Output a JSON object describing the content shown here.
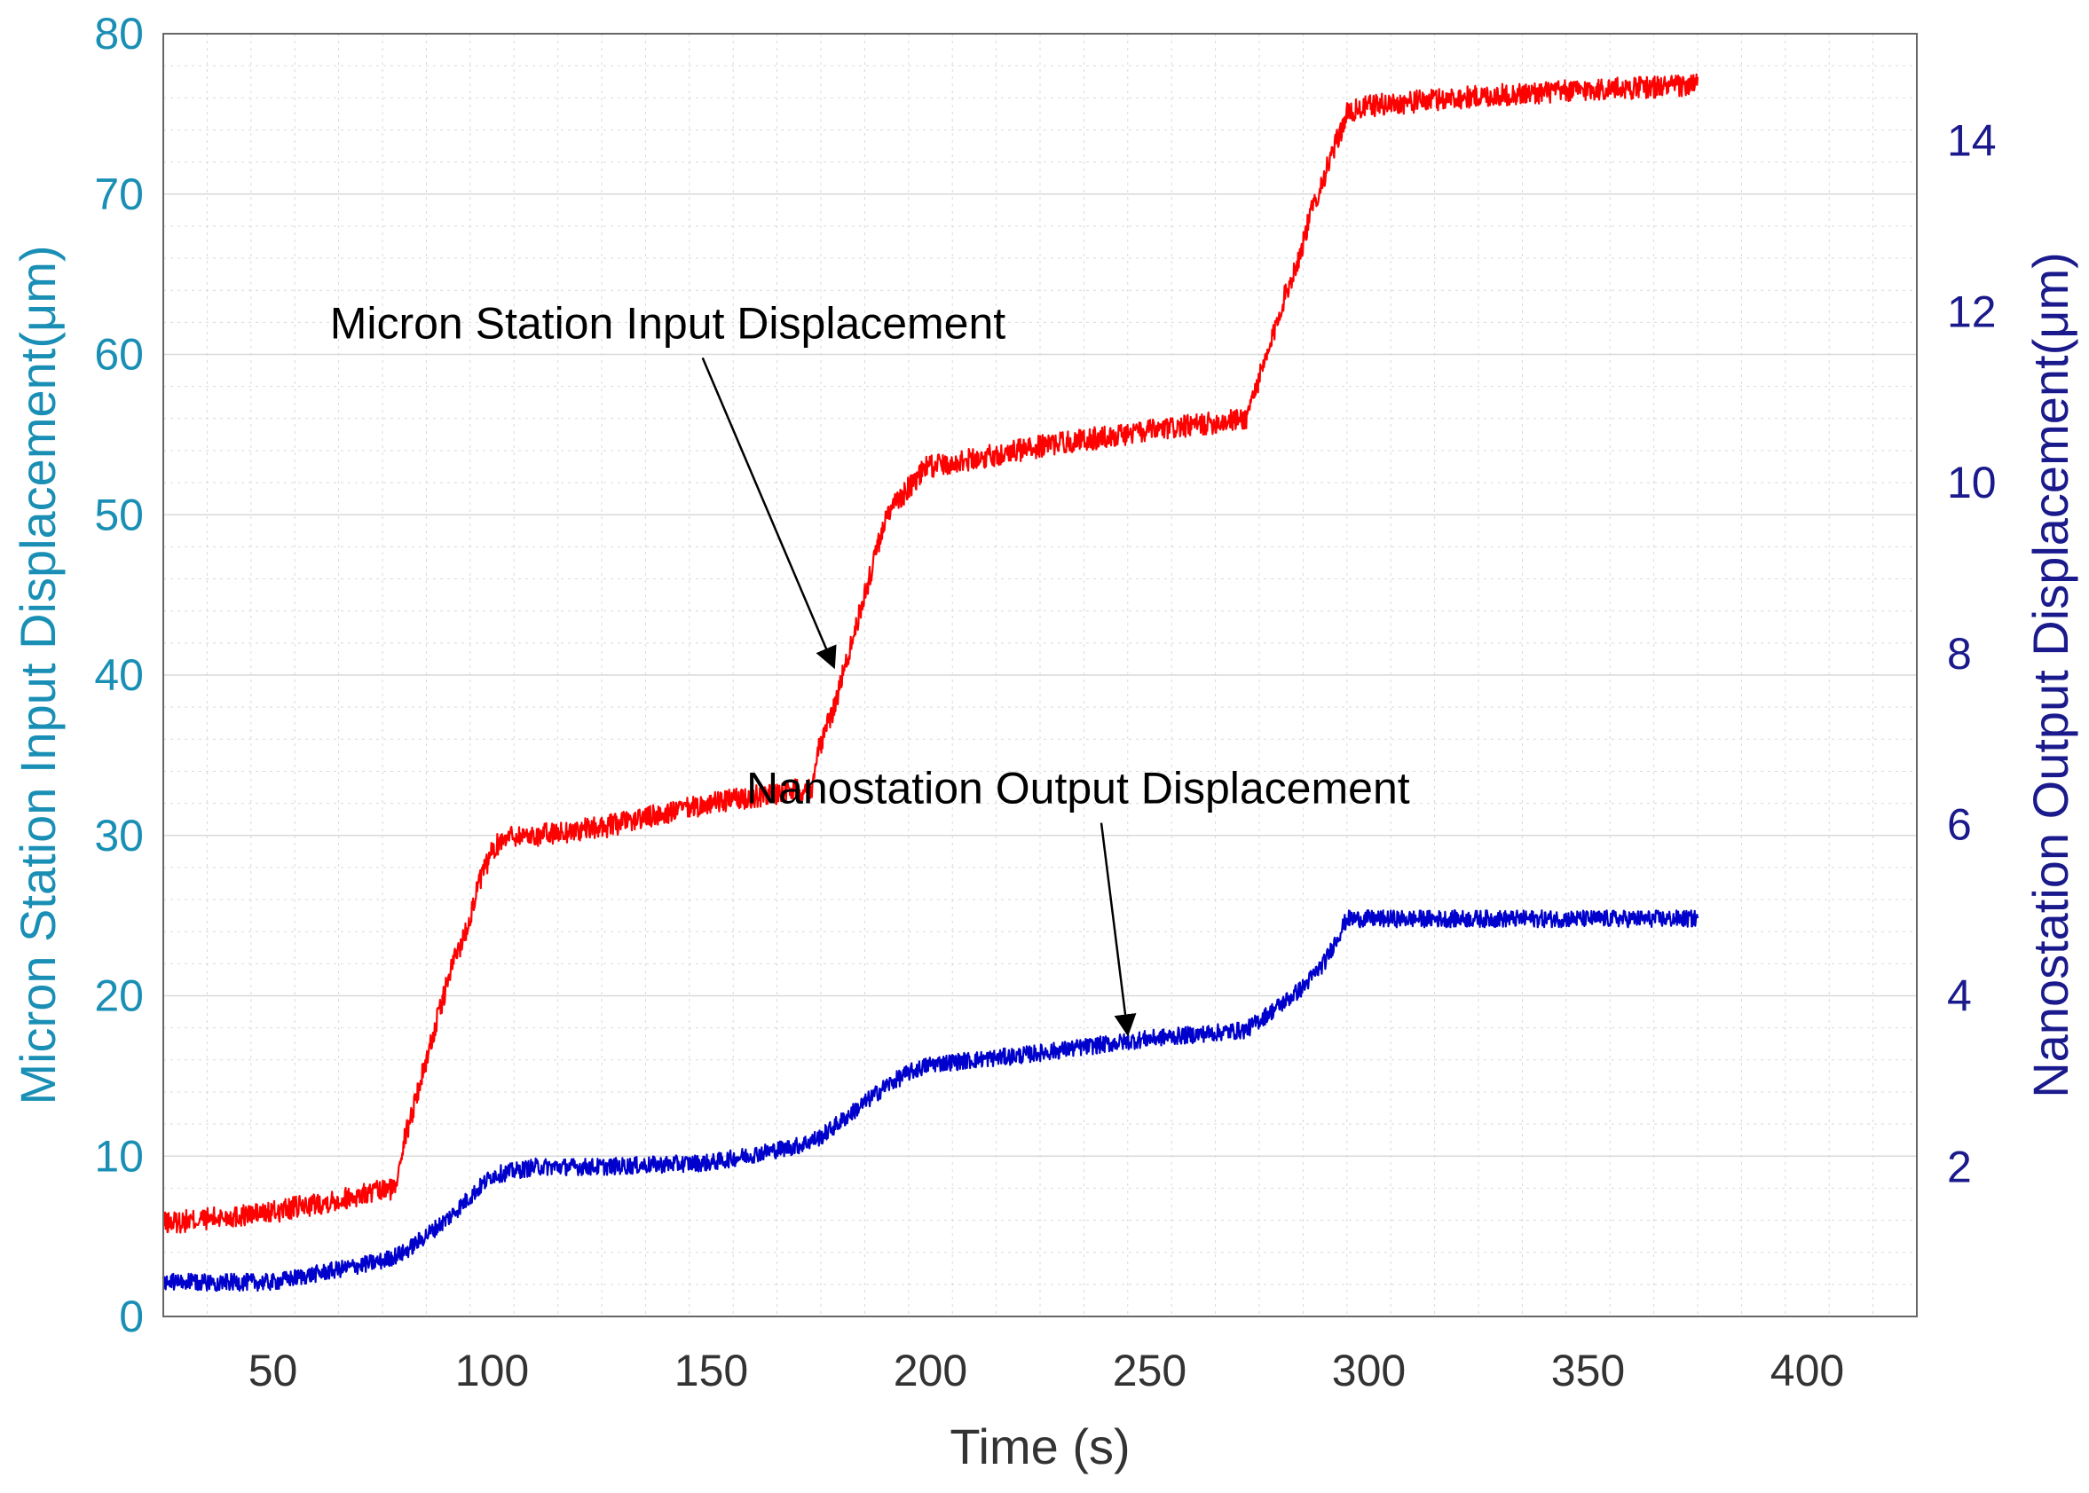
{
  "chart_data": {
    "type": "line",
    "xlabel": "Time (s)",
    "ylabel_left": "Micron Station Input Displacement(μm)",
    "ylabel_right": "Nanostation Output Displacement(μm)",
    "xlim": [
      25,
      425
    ],
    "ylim_left": [
      0,
      80
    ],
    "ylim_right": [
      0.25,
      15.25
    ],
    "x_ticks": [
      50,
      100,
      150,
      200,
      250,
      300,
      350,
      400
    ],
    "y_ticks_left": [
      0,
      10,
      20,
      30,
      40,
      50,
      60,
      70,
      80
    ],
    "y_ticks_right": [
      2,
      4,
      6,
      8,
      10,
      12,
      14
    ],
    "grid": true,
    "colors": {
      "input_series": "#ff0000",
      "output_series": "#0000cc",
      "left_axis": "#1a8fb5",
      "right_axis": "#1a1a8c",
      "grid": "#d9d9d9"
    },
    "series": [
      {
        "name": "Micron Station Input Displacement",
        "axis": "left",
        "color": "#ff0000",
        "x": [
          25,
          50,
          78,
          79,
          82,
          85,
          88,
          91,
          94,
          97,
          100,
          103,
          106,
          110,
          125,
          150,
          173,
          174,
          178,
          180,
          184,
          187,
          190,
          193,
          196,
          199,
          200,
          230,
          272,
          273,
          277,
          280,
          284,
          287,
          291,
          295,
          300,
          320,
          350,
          375
        ],
        "y": [
          5.8,
          6.5,
          8,
          10,
          13,
          16,
          19,
          22,
          24,
          27,
          29,
          30,
          30,
          30,
          30.5,
          32,
          33,
          35,
          38,
          40,
          44,
          47,
          50,
          51,
          52,
          53,
          53,
          54.5,
          56,
          57,
          60,
          63,
          66,
          69,
          72,
          75,
          75.5,
          76,
          76.5,
          76.8
        ],
        "noise": 0.7
      },
      {
        "name": "Nanostation Output Displacement",
        "axis": "right",
        "color": "#0000cc",
        "x": [
          25,
          50,
          60,
          75,
          80,
          90,
          100,
          110,
          125,
          150,
          170,
          175,
          180,
          185,
          190,
          195,
          200,
          220,
          250,
          272,
          280,
          285,
          290,
          295,
          300,
          325,
          350,
          375
        ],
        "y": [
          0.65,
          0.65,
          0.75,
          0.9,
          1.0,
          1.4,
          1.9,
          2.0,
          2.0,
          2.05,
          2.25,
          2.35,
          2.55,
          2.75,
          2.95,
          3.1,
          3.2,
          3.3,
          3.5,
          3.6,
          3.9,
          4.1,
          4.4,
          4.9,
          4.9,
          4.9,
          4.9,
          4.9
        ],
        "noise": 0.1
      }
    ],
    "annotations": [
      {
        "text": "Micron Station Input Displacement",
        "text_at": [
          63,
          61
        ],
        "arrow_to": [
          178,
          40.5
        ],
        "axis": "left"
      },
      {
        "text": "Nanostation Output Displacement",
        "text_at": [
          158,
          32
        ],
        "arrow_to": [
          245,
          3.55
        ],
        "axis_text": "left",
        "axis_arrow": "right"
      }
    ]
  }
}
